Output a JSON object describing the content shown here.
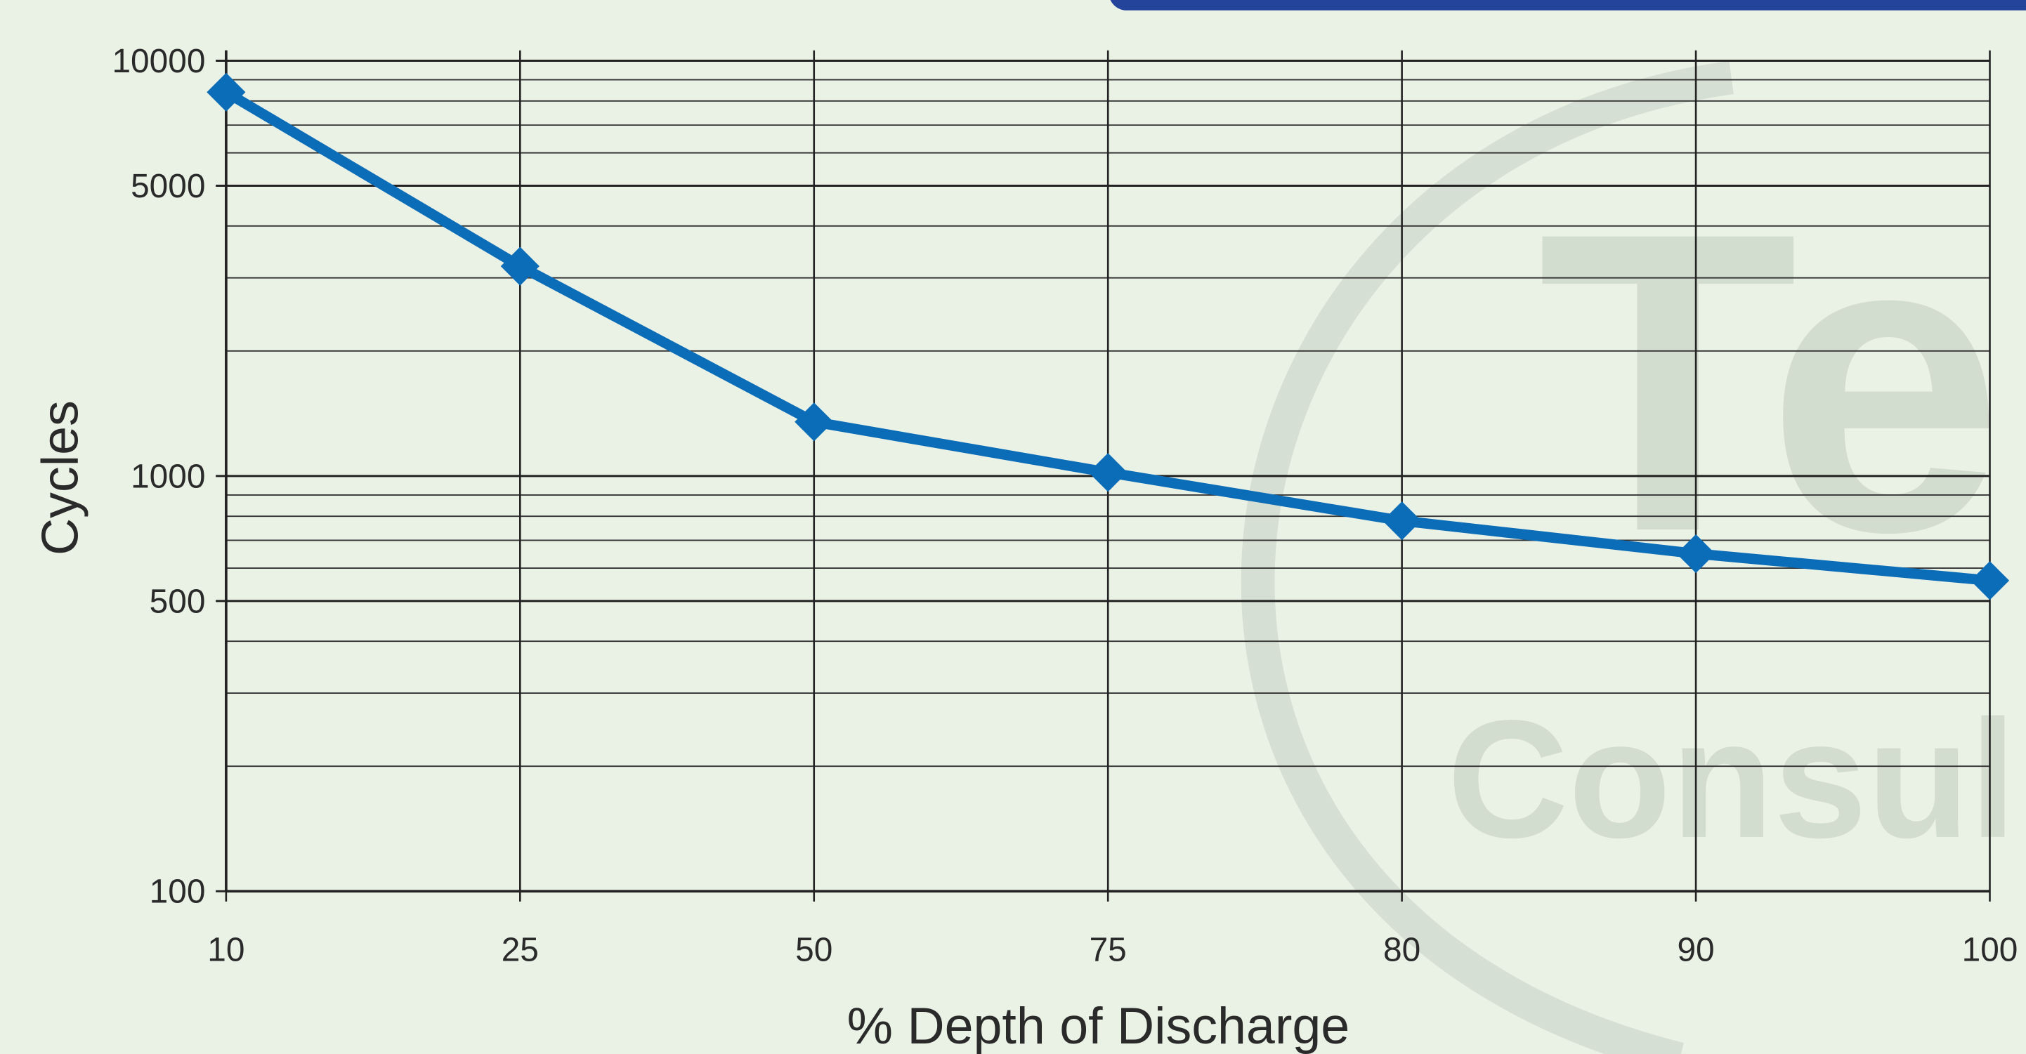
{
  "chart_data": {
    "type": "line",
    "xlabel": "% Depth of Discharge",
    "ylabel": "Cycles",
    "categories": [
      "10",
      "25",
      "50",
      "75",
      "80",
      "90",
      "100"
    ],
    "series": [
      {
        "name": "Cycles",
        "color": "#0b6cb8",
        "values": [
          8400,
          3200,
          1350,
          1020,
          780,
          650,
          560
        ]
      }
    ],
    "ylim": [
      100,
      10000
    ],
    "yscale": "log",
    "yticks": [
      100,
      500,
      1000,
      5000,
      10000
    ],
    "minor_yticks": [
      200,
      300,
      400,
      600,
      700,
      800,
      900,
      2000,
      3000,
      4000,
      6000,
      7000,
      8000,
      9000
    ],
    "grid": true
  },
  "watermark": {
    "line1": "Te",
    "line2": "Consul"
  }
}
